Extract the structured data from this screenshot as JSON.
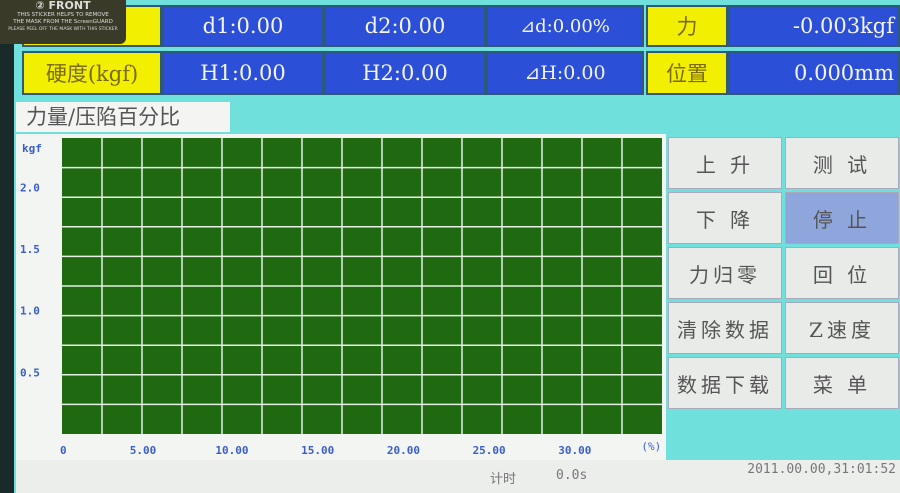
{
  "header": {
    "row1": {
      "label": ")",
      "d1": "d1:0.00",
      "d2": "d2:0.00",
      "dd": "⊿d:0.00%",
      "force_label": "力",
      "force_value": "-0.003kgf"
    },
    "row2": {
      "label": "硬度(kgf)",
      "h1": "H1:0.00",
      "h2": "H2:0.00",
      "dh": "⊿H:0.00",
      "pos_label": "位置",
      "pos_value": "0.000mm"
    }
  },
  "tab": "力量/压陷百分比",
  "chart_data": {
    "type": "line",
    "title": "力量/压陷百分比",
    "ylabel": "kgf",
    "xlabel": "(%)",
    "xlim": [
      0,
      35
    ],
    "ylim": [
      0,
      2.4
    ],
    "y_ticks": [
      "2.0",
      "1.5",
      "1.0",
      "0.5"
    ],
    "x_ticks": [
      "0",
      "5.00",
      "10.00",
      "15.00",
      "20.00",
      "25.00",
      "30.00"
    ],
    "grid": true,
    "series": [],
    "colors": {
      "plot": "#1f6a10",
      "grid": "#e6f0e6",
      "ticks": "#3a5fc8"
    }
  },
  "buttons": [
    "上 升",
    "测 试",
    "下 降",
    "停 止",
    "力归零",
    "回 位",
    "清除数据",
    "Z速度",
    "数据下载",
    "菜 单"
  ],
  "status": {
    "timer_label": "计时",
    "timer_value": "0.0s",
    "datetime": "2011.00.00,31:01:52"
  },
  "sticker": {
    "line1": "FRONT",
    "line2": "THIS STICKER HELPS TO REMOVE",
    "line3": "THE MASK FROM THE ScreenGUARD",
    "line4": "PLEASE PEEL OFF THE MASK WITH THIS STICKER"
  }
}
